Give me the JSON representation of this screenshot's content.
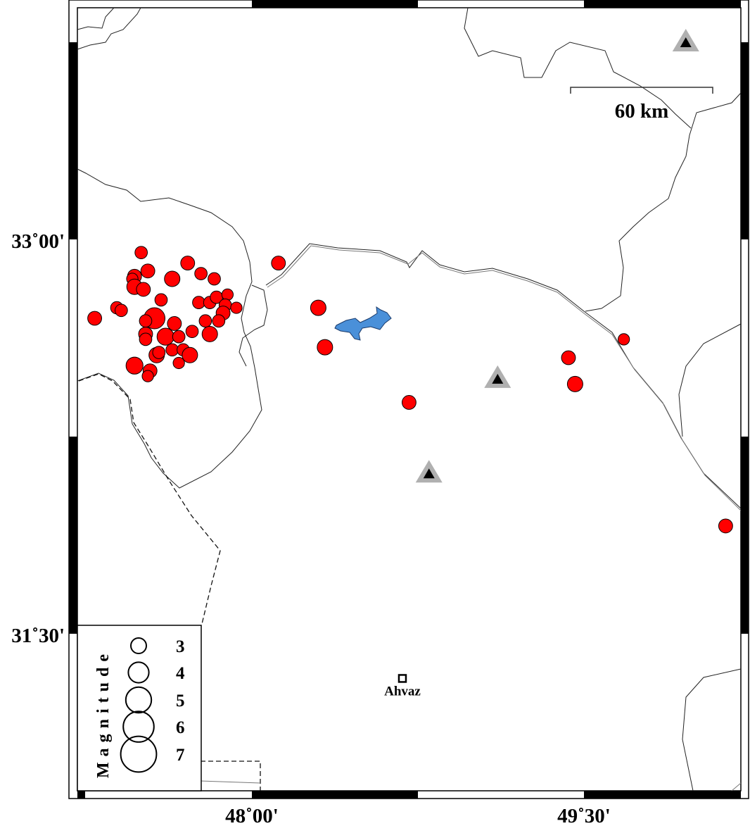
{
  "map": {
    "lon_ticks": [
      {
        "value": 48.0,
        "label": "48˚00'"
      },
      {
        "value": 49.5,
        "label": "49˚30'"
      }
    ],
    "lat_ticks": [
      {
        "value": 33.0,
        "label": "33˚00'"
      },
      {
        "value": 31.5,
        "label": "31˚30'"
      }
    ],
    "extent": {
      "lon_min": 47.21,
      "lon_max": 50.21,
      "lat_min": 31.07,
      "lat_max": 33.88
    },
    "colors": {
      "event_fill": "#ff0000",
      "event_stroke": "#000000",
      "lake": "#4a90d9",
      "station_outer": "#b0b0b0",
      "station_inner": "#000000"
    },
    "scale_bar": {
      "label": "60 km",
      "length_km": 60
    },
    "legend": {
      "title": "Magnitude",
      "entries": [
        {
          "mag": 3,
          "label": "3"
        },
        {
          "mag": 4,
          "label": "4"
        },
        {
          "mag": 5,
          "label": "5"
        },
        {
          "mag": 6,
          "label": "6"
        },
        {
          "mag": 7,
          "label": "7"
        }
      ]
    },
    "cities": [
      {
        "name": "Ahvaz",
        "lon": 48.68,
        "lat": 31.33,
        "icon": "square-city-marker"
      }
    ],
    "stations": [
      {
        "lon": 49.96,
        "lat": 33.75,
        "icon": "triangle-station"
      },
      {
        "lon": 49.11,
        "lat": 32.47,
        "icon": "triangle-station"
      },
      {
        "lon": 48.8,
        "lat": 32.11,
        "icon": "triangle-station"
      }
    ],
    "events": [
      [
        47.5,
        32.95,
        2.4
      ],
      [
        47.71,
        32.91,
        2.7
      ],
      [
        47.53,
        32.88,
        2.7
      ],
      [
        47.47,
        32.86,
        2.7
      ],
      [
        47.46,
        32.85,
        2.2
      ],
      [
        47.47,
        32.82,
        3.0
      ],
      [
        47.51,
        32.81,
        2.7
      ],
      [
        47.64,
        32.85,
        3.0
      ],
      [
        47.77,
        32.87,
        2.4
      ],
      [
        47.83,
        32.85,
        2.4
      ],
      [
        47.59,
        32.77,
        2.4
      ],
      [
        47.76,
        32.76,
        2.4
      ],
      [
        47.81,
        32.76,
        2.4
      ],
      [
        47.84,
        32.78,
        2.4
      ],
      [
        47.89,
        32.79,
        2.2
      ],
      [
        47.88,
        32.75,
        2.4
      ],
      [
        47.93,
        32.74,
        2.2
      ],
      [
        47.87,
        32.72,
        2.7
      ],
      [
        47.85,
        32.69,
        2.4
      ],
      [
        47.39,
        32.74,
        2.4
      ],
      [
        47.41,
        32.73,
        2.4
      ],
      [
        47.29,
        32.7,
        2.7
      ],
      [
        47.56,
        32.7,
        4.1
      ],
      [
        47.52,
        32.69,
        2.4
      ],
      [
        47.65,
        32.68,
        2.7
      ],
      [
        47.79,
        32.69,
        2.4
      ],
      [
        47.81,
        32.64,
        3.0
      ],
      [
        47.73,
        32.65,
        2.4
      ],
      [
        47.52,
        32.64,
        2.7
      ],
      [
        47.61,
        32.63,
        3.3
      ],
      [
        47.67,
        32.63,
        2.4
      ],
      [
        47.52,
        32.62,
        2.4
      ],
      [
        47.57,
        32.56,
        3.0
      ],
      [
        47.58,
        32.57,
        2.4
      ],
      [
        47.64,
        32.58,
        2.4
      ],
      [
        47.69,
        32.58,
        2.4
      ],
      [
        47.72,
        32.56,
        3.0
      ],
      [
        47.67,
        32.53,
        2.2
      ],
      [
        47.47,
        32.52,
        3.3
      ],
      [
        47.54,
        32.5,
        2.7
      ],
      [
        47.53,
        32.48,
        2.2
      ],
      [
        48.12,
        32.91,
        2.7
      ],
      [
        48.3,
        32.74,
        3.0
      ],
      [
        48.33,
        32.59,
        3.0
      ],
      [
        48.71,
        32.38,
        2.7
      ],
      [
        49.43,
        32.55,
        2.7
      ],
      [
        49.46,
        32.45,
        3.0
      ],
      [
        49.68,
        32.62,
        2.2
      ],
      [
        50.14,
        31.91,
        2.7
      ]
    ]
  }
}
